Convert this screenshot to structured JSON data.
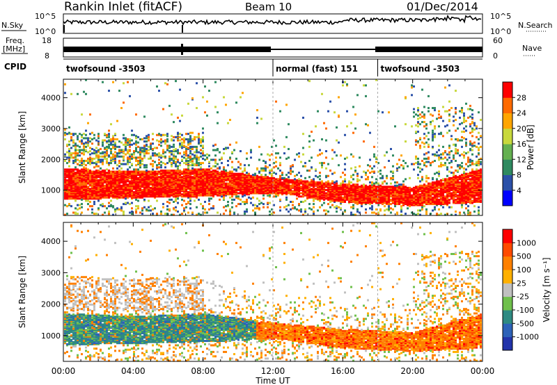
{
  "header": {
    "station": "Rankin Inlet (fitACF)",
    "beam": "Beam 10",
    "date": "01/Dec/2014"
  },
  "noise_panel": {
    "left_label": "N.Sky",
    "right_label": "N.Search",
    "left_ticks": [
      "10^5",
      "10^0"
    ],
    "right_ticks": [
      "10^5",
      "10^0"
    ]
  },
  "freq_panel": {
    "left_label_line1": "Freq.",
    "left_label_line2": "[MHz]",
    "left_ticks": [
      "18",
      "8"
    ],
    "right_label": "Nave",
    "right_ticks": [
      "60",
      "0"
    ]
  },
  "cpid_panel": {
    "label": "CPID",
    "segments": [
      {
        "start_hour": 0,
        "end_hour": 12,
        "name": "twofsound -3503"
      },
      {
        "start_hour": 12,
        "end_hour": 18,
        "name": "normal (fast) 151"
      },
      {
        "start_hour": 18,
        "end_hour": 24,
        "name": "twofsound -3503"
      }
    ]
  },
  "colors": {
    "power_scale": [
      "#0000ff",
      "#2b50a8",
      "#2f8a60",
      "#64b050",
      "#c8d83c",
      "#ffa500",
      "#ff6a00",
      "#ff0000"
    ],
    "velocity_scale": [
      "#2233aa",
      "#2d62b8",
      "#2e8a82",
      "#6fc04c",
      "#c0c0c0",
      "#ffb000",
      "#ff8000",
      "#ff4a00",
      "#ff0000"
    ]
  },
  "chart_data": [
    {
      "type": "heatmap",
      "panel": "power",
      "ylabel": "Slant Range [km]",
      "yticks": [
        "1000",
        "2000",
        "3000",
        "4000"
      ],
      "ylim": [
        180,
        4600
      ],
      "xlim": [
        0,
        24
      ],
      "colorbar_label": "Power [dB]",
      "colorbar_ticks": [
        "28",
        "24",
        "20",
        "16",
        "12",
        "8",
        "4"
      ],
      "colorbar_range": [
        0,
        32
      ],
      "main_band_range_km": [
        {
          "hour": 0,
          "low": 700,
          "high": 1700
        },
        {
          "hour": 4,
          "low": 750,
          "high": 1600
        },
        {
          "hour": 8,
          "low": 800,
          "high": 1700
        },
        {
          "hour": 12,
          "low": 900,
          "high": 1400
        },
        {
          "hour": 16,
          "low": 600,
          "high": 1200
        },
        {
          "hour": 20,
          "low": 500,
          "high": 1100
        },
        {
          "hour": 24,
          "low": 600,
          "high": 1700
        }
      ]
    },
    {
      "type": "heatmap",
      "panel": "velocity",
      "ylabel": "Slant Range [km]",
      "yticks": [
        "1000",
        "2000",
        "3000",
        "4000"
      ],
      "ylim": [
        180,
        4600
      ],
      "xlim": [
        0,
        24
      ],
      "colorbar_label": "Velocity [m s⁻¹]",
      "colorbar_ticks": [
        "1000",
        "500",
        "100",
        "25",
        "-25",
        "-100",
        "-500",
        "-1000"
      ],
      "xlabel": "Time UT",
      "xticks": [
        "00:00",
        "04:00",
        "08:00",
        "12:00",
        "16:00",
        "20:00",
        "00:00"
      ]
    }
  ]
}
